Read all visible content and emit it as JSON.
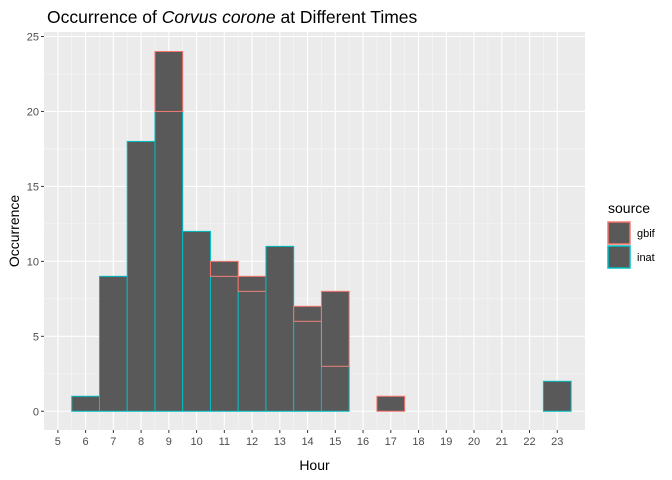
{
  "chart_data": {
    "type": "bar",
    "title": {
      "prefix": "Occurrence of ",
      "species": "Corvus corone",
      "suffix": " at Different Times"
    },
    "xlabel": "Hour",
    "ylabel": "Occurrence",
    "x_ticks": [
      5,
      6,
      7,
      8,
      9,
      10,
      11,
      12,
      13,
      14,
      15,
      16,
      17,
      18,
      19,
      20,
      21,
      22,
      23
    ],
    "xlim": [
      4.5,
      24.0
    ],
    "ylim": [
      -1.25,
      25.3
    ],
    "y_ticks": [
      0,
      5,
      10,
      15,
      20,
      25
    ],
    "grid": true,
    "legend": {
      "title": "source",
      "placement": "right",
      "entries": [
        "gbif",
        "inat"
      ]
    },
    "colors": {
      "panel": "#EBEBEB",
      "grid_major": "#FFFFFF",
      "bar_fill": "#595959",
      "gbif": "#F8766D",
      "inat": "#00BFC4",
      "text": "#4D4D4D"
    },
    "x": [
      6,
      7,
      8,
      9,
      10,
      11,
      12,
      13,
      14,
      15,
      16,
      17,
      18,
      19,
      20,
      21,
      22,
      23
    ],
    "series": [
      {
        "name": "gbif",
        "values": [
          0,
          0,
          0,
          4,
          0,
          1,
          1,
          0,
          1,
          5,
          0,
          1,
          0,
          0,
          0,
          0,
          0,
          0
        ]
      },
      {
        "name": "inat",
        "values": [
          1,
          9,
          18,
          20,
          12,
          9,
          8,
          11,
          6,
          3,
          0,
          0,
          0,
          0,
          0,
          0,
          0,
          2
        ]
      }
    ]
  }
}
